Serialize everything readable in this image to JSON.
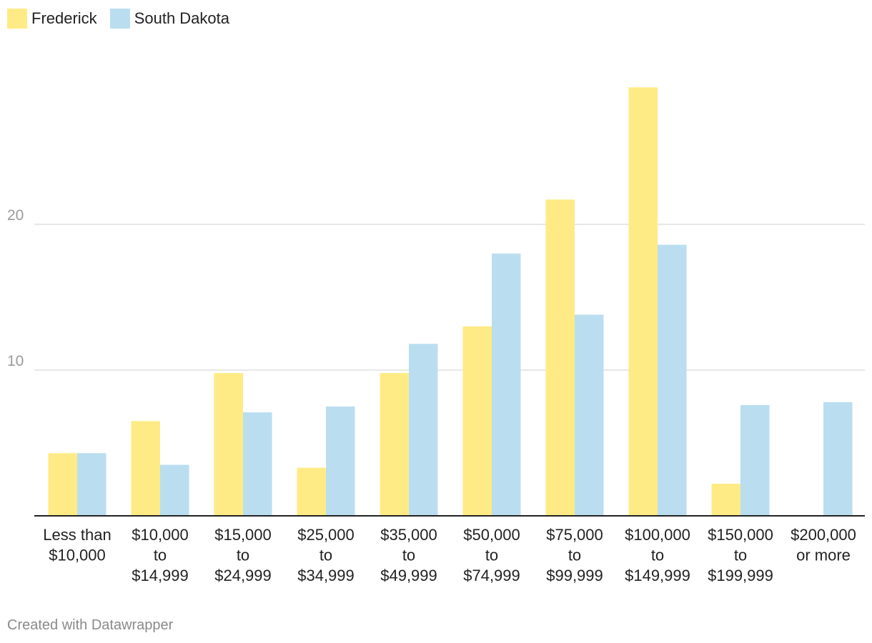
{
  "chart_data": {
    "type": "bar",
    "categories": [
      [
        "Less than",
        "$10,000"
      ],
      [
        "$10,000",
        "to",
        "$14,999"
      ],
      [
        "$15,000",
        "to",
        "$24,999"
      ],
      [
        "$25,000",
        "to",
        "$34,999"
      ],
      [
        "$35,000",
        "to",
        "$49,999"
      ],
      [
        "$50,000",
        "to",
        "$74,999"
      ],
      [
        "$75,000",
        "to",
        "$99,999"
      ],
      [
        "$100,000",
        "to",
        "$149,999"
      ],
      [
        "$150,000",
        "to",
        "$199,999"
      ],
      [
        "$200,000",
        "or more"
      ]
    ],
    "series": [
      {
        "name": "Frederick",
        "color": "#ffeb85",
        "values": [
          4.3,
          6.5,
          9.8,
          3.3,
          9.8,
          13.0,
          21.7,
          29.4,
          2.2,
          0
        ]
      },
      {
        "name": "South Dakota",
        "color": "#badeef",
        "values": [
          4.3,
          3.5,
          7.1,
          7.5,
          11.8,
          18.0,
          13.8,
          18.6,
          7.6,
          7.8
        ]
      }
    ],
    "yticks": [
      10,
      20
    ],
    "ylim": [
      0,
      30
    ],
    "title": "",
    "xlabel": "",
    "ylabel": "",
    "grid": true,
    "legend": "top-left"
  },
  "footer": "Created with Datawrapper"
}
